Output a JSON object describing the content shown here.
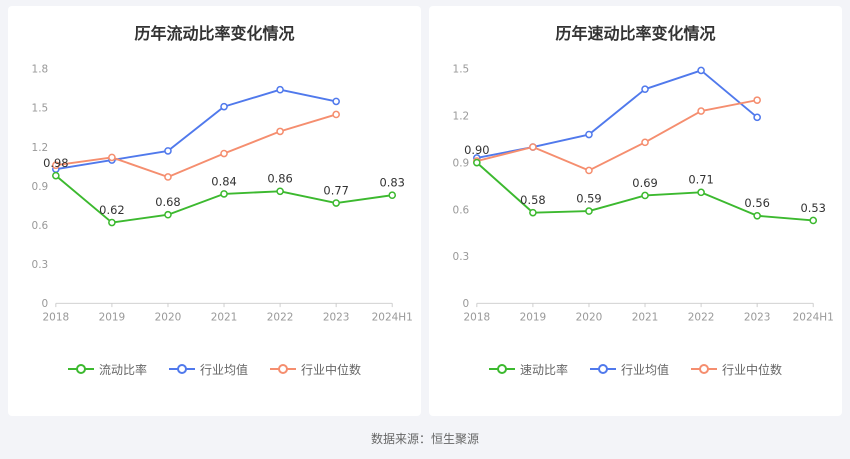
{
  "page": {
    "source_note": "数据来源：恒生聚源"
  },
  "colors": {
    "title_text": "#333333",
    "axis_text": "#999999",
    "axis_line": "#cccccc",
    "label_text": "#333333",
    "legend_text": "#666666",
    "page_bg": "#f3f4f8",
    "card_bg": "#ffffff"
  },
  "chart_data": [
    {
      "type": "line",
      "title": "历年流动比率变化情况",
      "categories": [
        "2018",
        "2019",
        "2020",
        "2021",
        "2022",
        "2023",
        "2024H1"
      ],
      "ylim": [
        0,
        1.8
      ],
      "yticks": [
        0,
        0.3,
        0.6,
        0.9,
        1.2,
        1.5,
        1.8
      ],
      "grid": false,
      "legend_position": "bottom",
      "series": [
        {
          "name": "流动比率",
          "color": "#3cb92f",
          "labels": true,
          "values": [
            0.98,
            0.62,
            0.68,
            0.84,
            0.86,
            0.77,
            0.83
          ]
        },
        {
          "name": "行业均值",
          "color": "#5079ec",
          "labels": false,
          "values": [
            1.03,
            1.1,
            1.17,
            1.51,
            1.64,
            1.55,
            null
          ]
        },
        {
          "name": "行业中位数",
          "color": "#f58e6f",
          "labels": false,
          "values": [
            1.06,
            1.12,
            0.97,
            1.15,
            1.32,
            1.45,
            null
          ]
        }
      ]
    },
    {
      "type": "line",
      "title": "历年速动比率变化情况",
      "categories": [
        "2018",
        "2019",
        "2020",
        "2021",
        "2022",
        "2023",
        "2024H1"
      ],
      "ylim": [
        0,
        1.5
      ],
      "yticks": [
        0,
        0.3,
        0.6,
        0.9,
        1.2,
        1.5
      ],
      "grid": false,
      "legend_position": "bottom",
      "series": [
        {
          "name": "速动比率",
          "color": "#3cb92f",
          "labels": true,
          "values": [
            0.9,
            0.58,
            0.59,
            0.69,
            0.71,
            0.56,
            0.53
          ]
        },
        {
          "name": "行业均值",
          "color": "#5079ec",
          "labels": false,
          "values": [
            0.93,
            1.0,
            1.08,
            1.37,
            1.49,
            1.19,
            null
          ]
        },
        {
          "name": "行业中位数",
          "color": "#f58e6f",
          "labels": false,
          "values": [
            0.91,
            1.0,
            0.85,
            1.03,
            1.23,
            1.3,
            null
          ]
        }
      ]
    }
  ]
}
